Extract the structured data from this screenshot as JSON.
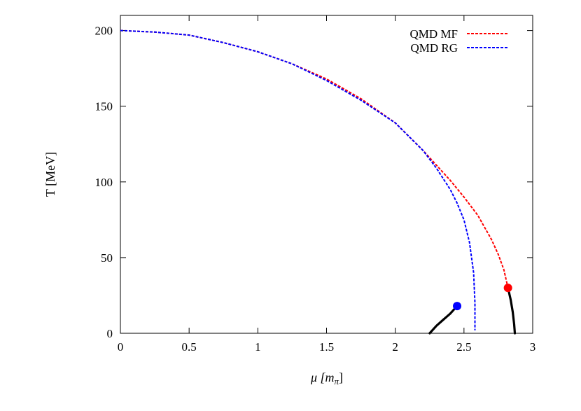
{
  "chart_data": {
    "type": "line",
    "title": "",
    "xlabel": "μ [m",
    "xlabel_sub": "π",
    "xlabel_close": "]",
    "ylabel": "T [MeV]",
    "xlim": [
      0,
      3
    ],
    "ylim": [
      0,
      210
    ],
    "xticks": [
      0,
      0.5,
      1,
      1.5,
      2,
      2.5,
      3
    ],
    "xtick_labels": [
      "0",
      "0.5",
      "1",
      "1.5",
      "2",
      "2.5",
      "3"
    ],
    "yticks": [
      0,
      50,
      100,
      150,
      200
    ],
    "ytick_labels": [
      "0",
      "50",
      "100",
      "150",
      "200"
    ],
    "grid": false,
    "legend_position": "top-right",
    "series": [
      {
        "name": "QMD MF",
        "color": "#ff0000",
        "style": "dashed",
        "x": [
          0,
          0.25,
          0.5,
          0.75,
          1.0,
          1.25,
          1.5,
          1.75,
          2.0,
          2.1,
          2.2,
          2.3,
          2.4,
          2.5,
          2.6,
          2.7,
          2.75,
          2.79,
          2.82
        ],
        "y": [
          200,
          199,
          197,
          192,
          186,
          178,
          168,
          155,
          139,
          130,
          121,
          111,
          101,
          90,
          78,
          62,
          52,
          42,
          30
        ]
      },
      {
        "name": "QMD RG",
        "color": "#0000ff",
        "style": "dashed",
        "x": [
          0,
          0.25,
          0.5,
          0.75,
          1.0,
          1.25,
          1.5,
          1.75,
          2.0,
          2.1,
          2.2,
          2.3,
          2.4,
          2.45,
          2.5,
          2.54,
          2.57,
          2.58,
          2.58
        ],
        "y": [
          200,
          199,
          197,
          192,
          186,
          178,
          167,
          154,
          139,
          130,
          121,
          109,
          95,
          86,
          75,
          60,
          40,
          20,
          2
        ]
      },
      {
        "name": "",
        "color": "#000000",
        "style": "solid",
        "x": [
          2.25,
          2.3,
          2.35,
          2.4,
          2.45
        ],
        "y": [
          0,
          5,
          9,
          13,
          18
        ]
      },
      {
        "name": "",
        "color": "#000000",
        "style": "solid",
        "x": [
          2.82,
          2.84,
          2.855,
          2.865,
          2.87
        ],
        "y": [
          30,
          22,
          14,
          6,
          0
        ]
      }
    ],
    "critical_points": [
      {
        "x": 2.45,
        "y": 18,
        "color": "#0000ff"
      },
      {
        "x": 2.82,
        "y": 30,
        "color": "#ff0000"
      }
    ]
  }
}
